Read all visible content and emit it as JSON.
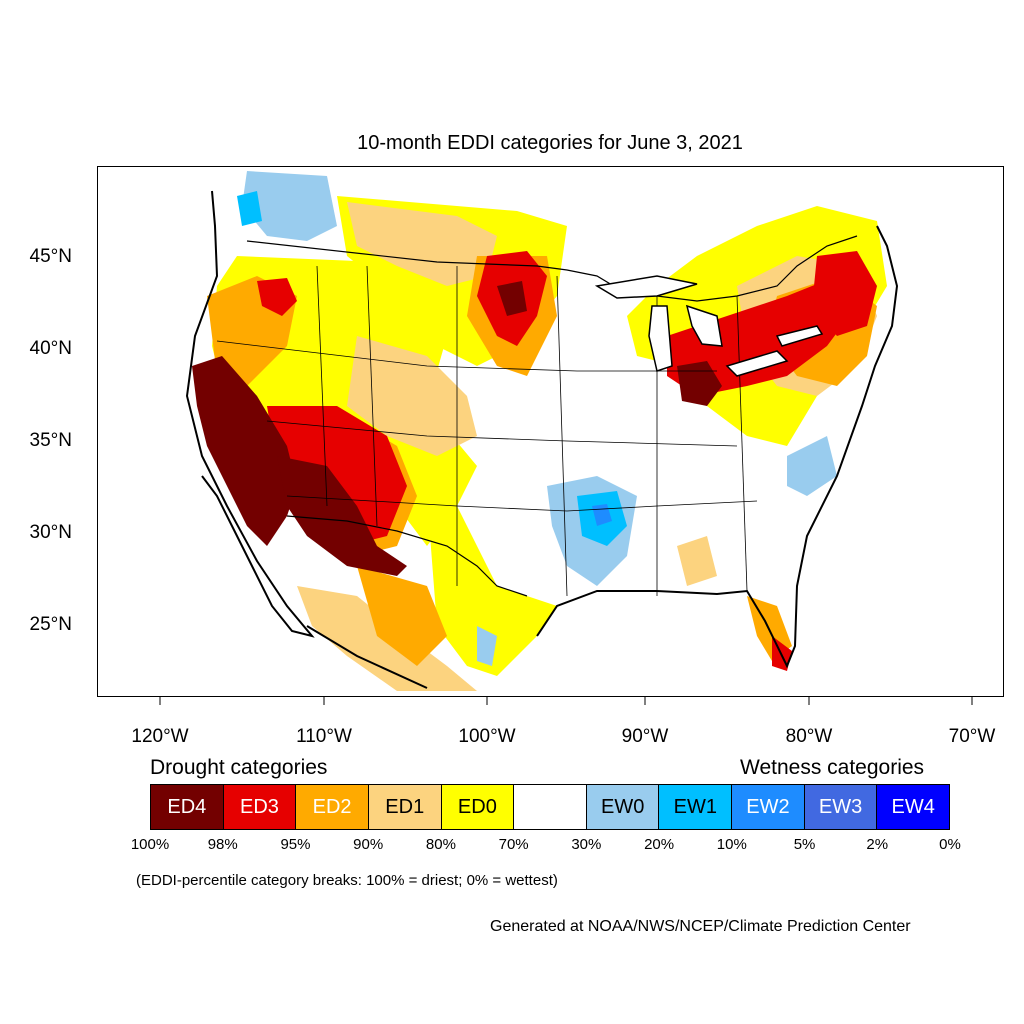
{
  "title": "10-month EDDI categories for June 3, 2021",
  "map": {
    "lat_labels": [
      "45°N",
      "40°N",
      "35°N",
      "30°N",
      "25°N"
    ],
    "lon_labels": [
      "120°W",
      "110°W",
      "100°W",
      "90°W",
      "80°W",
      "70°W"
    ]
  },
  "legend": {
    "drought_heading": "Drought categories",
    "wetness_heading": "Wetness categories",
    "categories": [
      {
        "label": "ED4",
        "color": "#730000",
        "text_color": "#ffffff"
      },
      {
        "label": "ED3",
        "color": "#e60000",
        "text_color": "#ffffff"
      },
      {
        "label": "ED2",
        "color": "#ffaa00",
        "text_color": "#ffffff"
      },
      {
        "label": "ED1",
        "color": "#fcd37f",
        "text_color": "#000000"
      },
      {
        "label": "ED0",
        "color": "#ffff00",
        "text_color": "#000000"
      },
      {
        "label": "",
        "color": "#ffffff",
        "text_color": "#000000"
      },
      {
        "label": "EW0",
        "color": "#99ccee",
        "text_color": "#000000"
      },
      {
        "label": "EW1",
        "color": "#00bfff",
        "text_color": "#000000"
      },
      {
        "label": "EW2",
        "color": "#1e8cff",
        "text_color": "#ffffff"
      },
      {
        "label": "EW3",
        "color": "#4169e1",
        "text_color": "#ffffff"
      },
      {
        "label": "EW4",
        "color": "#0000ff",
        "text_color": "#ffffff"
      }
    ],
    "breaks": [
      "100%",
      "98%",
      "95%",
      "90%",
      "80%",
      "70%",
      "30%",
      "20%",
      "10%",
      "5%",
      "2%",
      "0%"
    ]
  },
  "note": "(EDDI-percentile category breaks: 100% = driest; 0% = wettest)",
  "credit": "Generated at NOAA/NWS/NCEP/Climate Prediction Center"
}
